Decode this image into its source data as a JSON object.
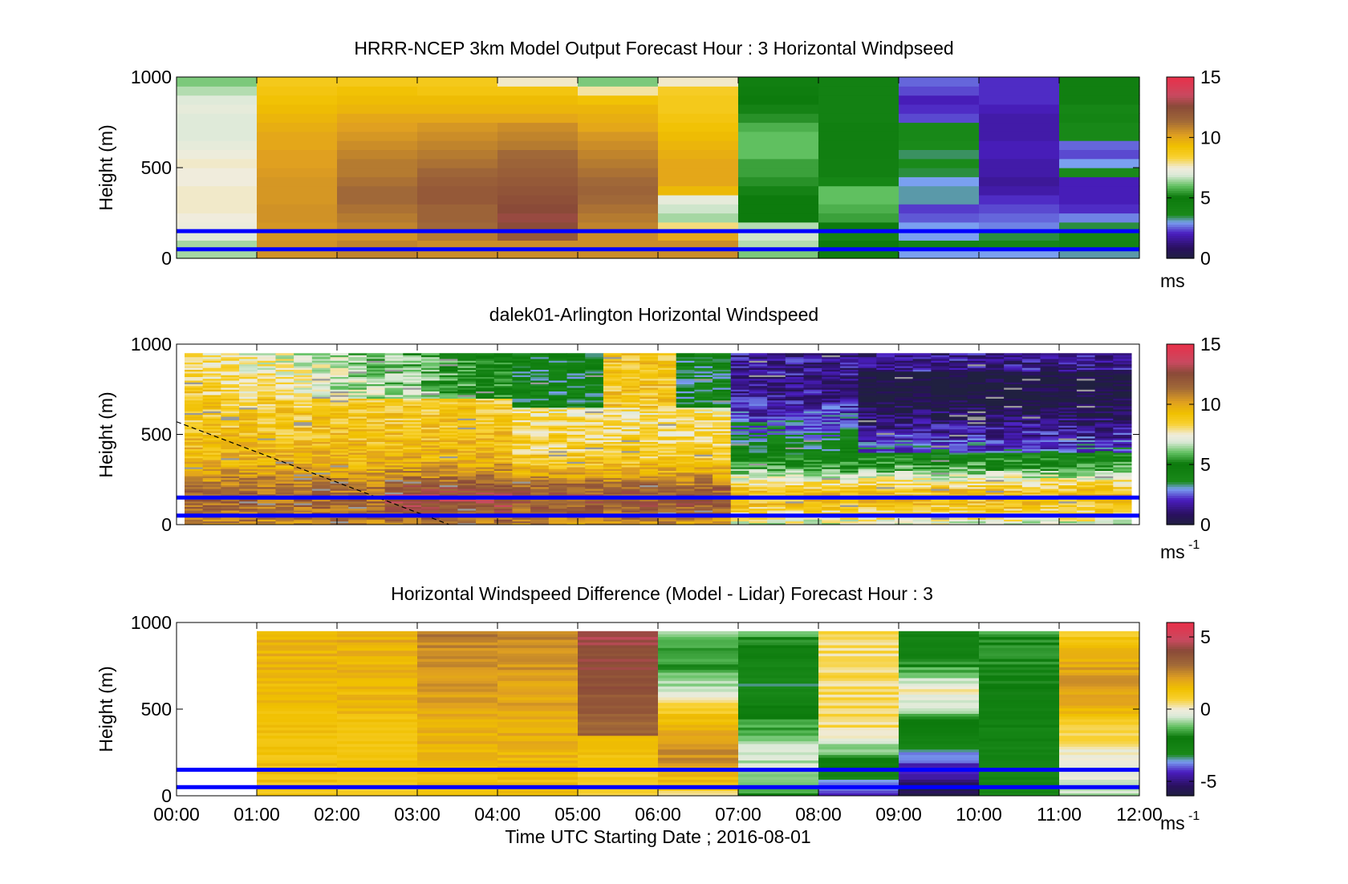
{
  "page": {
    "background": "#ffffff"
  },
  "chart_data": [
    {
      "type": "heatmap",
      "id": "model",
      "title": "HRRR-NCEP 3km Model Output   Forecast Hour : 3 Horizontal Windpseed",
      "ylabel": "Height (m)",
      "ylim": [
        0,
        1000
      ],
      "yticks": [
        "0",
        "500",
        "1000"
      ],
      "colorbar": {
        "ticks": [
          "0",
          "5",
          "10",
          "15"
        ],
        "range": [
          0,
          15
        ],
        "unit": "ms",
        "unit_sup": ""
      },
      "x_hours": [
        0,
        1,
        2,
        3,
        4,
        5,
        6,
        7,
        8,
        9,
        10,
        11,
        12
      ],
      "heights_m": [
        0,
        50,
        100,
        150,
        200,
        250,
        300,
        350,
        400,
        450,
        500,
        550,
        600,
        650,
        700,
        750,
        800,
        850,
        900,
        950,
        1000
      ],
      "values": [
        [
          6.5,
          10.5,
          10.8,
          10.6,
          10.6,
          10.6,
          10.6,
          6.2,
          4.8,
          3.0,
          3.0,
          3.2
        ],
        [
          6.5,
          10.5,
          10.8,
          10.6,
          10.6,
          10.6,
          10.6,
          6.6,
          5.0,
          4.2,
          4.0,
          4.2
        ],
        [
          7.0,
          10.4,
          10.5,
          11.0,
          12.0,
          10.6,
          10.0,
          6.8,
          5.2,
          3.0,
          3.5,
          4.0
        ],
        [
          7.4,
          10.4,
          10.8,
          11.4,
          12.5,
          10.8,
          8.0,
          6.6,
          5.0,
          3.0,
          2.8,
          3.5
        ],
        [
          7.5,
          10.5,
          11.0,
          11.6,
          12.8,
          11.0,
          6.5,
          5.0,
          5.6,
          2.5,
          2.6,
          2.8
        ],
        [
          7.6,
          10.5,
          11.2,
          11.6,
          12.6,
          11.2,
          6.8,
          5.0,
          5.8,
          2.3,
          2.4,
          2.2
        ],
        [
          7.6,
          10.4,
          11.4,
          12.0,
          12.4,
          11.4,
          7.2,
          5.0,
          6.0,
          3.2,
          2.2,
          2.0
        ],
        [
          7.6,
          10.4,
          11.4,
          12.0,
          12.2,
          11.6,
          9.5,
          5.2,
          6.0,
          3.2,
          1.8,
          2.0
        ],
        [
          7.5,
          10.4,
          11.2,
          11.8,
          12.0,
          11.4,
          10.0,
          5.4,
          4.0,
          3.0,
          1.6,
          2.0
        ],
        [
          7.5,
          10.3,
          11.0,
          11.5,
          11.8,
          11.2,
          10.0,
          5.6,
          4.5,
          3.5,
          1.8,
          3.6
        ],
        [
          7.6,
          10.2,
          11.0,
          11.2,
          11.6,
          11.0,
          10.0,
          5.6,
          4.5,
          3.6,
          1.8,
          3.0
        ],
        [
          7.4,
          10.2,
          10.8,
          11.0,
          11.4,
          10.8,
          9.8,
          6.0,
          4.6,
          3.4,
          2.0,
          2.4
        ],
        [
          7.2,
          10.0,
          10.6,
          10.8,
          11.0,
          10.6,
          9.6,
          6.0,
          4.6,
          3.6,
          2.0,
          2.6
        ],
        [
          7.0,
          10.0,
          10.4,
          10.6,
          10.8,
          10.4,
          9.4,
          6.0,
          4.6,
          3.8,
          1.8,
          3.8
        ],
        [
          7.0,
          9.8,
          10.2,
          10.4,
          10.6,
          10.0,
          9.2,
          5.8,
          4.6,
          3.8,
          1.8,
          3.8
        ],
        [
          7.0,
          9.6,
          10.0,
          10.0,
          10.0,
          9.8,
          9.0,
          5.4,
          4.4,
          2.4,
          1.8,
          4.2
        ],
        [
          7.2,
          9.4,
          9.6,
          9.6,
          9.6,
          9.6,
          8.8,
          5.2,
          4.4,
          2.2,
          2.0,
          4.0
        ],
        [
          7.0,
          9.2,
          9.4,
          9.4,
          9.4,
          9.2,
          8.8,
          5.0,
          4.4,
          2.0,
          2.2,
          4.6
        ],
        [
          6.6,
          9.0,
          9.2,
          9.0,
          9.0,
          7.8,
          8.6,
          4.8,
          4.4,
          2.4,
          2.2,
          4.6
        ],
        [
          6.2,
          8.8,
          8.8,
          8.8,
          7.6,
          6.2,
          7.6,
          4.6,
          4.4,
          2.6,
          2.2,
          4.6
        ]
      ],
      "lines_m": [
        150,
        50
      ]
    },
    {
      "type": "heatmap",
      "id": "lidar",
      "title": "dalek01-Arlington  Horizontal Windspeed",
      "ylabel": "Height (m)",
      "ylim": [
        0,
        1000
      ],
      "yticks": [
        "0",
        "500",
        "1000"
      ],
      "colorbar": {
        "ticks": [
          "0",
          "5",
          "10",
          "15"
        ],
        "range": [
          0,
          15
        ],
        "unit": "ms",
        "unit_sup": "-1"
      },
      "x_hours": [
        0,
        1,
        2,
        3,
        4,
        5,
        6,
        7,
        8,
        9,
        10,
        11,
        12
      ],
      "time_start_h": 0.1,
      "time_end_h": 11.9,
      "height_top_m": 950,
      "lines_m": [
        150,
        50
      ],
      "dashed_line": {
        "from": [
          0,
          570
        ],
        "to": [
          3.4,
          0
        ]
      }
    },
    {
      "type": "heatmap",
      "id": "diff",
      "title": "Horizontal Windspeed Difference (Model - Lidar) Forecast Hour : 3",
      "ylabel": "Height (m)",
      "xlabel": "Time UTC  Starting Date ; 2016-08-01",
      "ylim": [
        0,
        1000
      ],
      "yticks": [
        "0",
        "500",
        "1000"
      ],
      "xticks": [
        "00:00",
        "01:00",
        "02:00",
        "03:00",
        "04:00",
        "05:00",
        "06:00",
        "07:00",
        "08:00",
        "09:00",
        "10:00",
        "11:00",
        "12:00"
      ],
      "colorbar": {
        "ticks": [
          "-5",
          "0",
          "5"
        ],
        "range": [
          -6,
          6
        ],
        "unit": "ms",
        "unit_sup": "-1"
      },
      "x_hours": [
        0,
        1,
        2,
        3,
        4,
        5,
        6,
        7,
        8,
        9,
        10,
        11,
        12
      ],
      "height_top_m": 950,
      "lines_m": [
        150,
        50
      ]
    }
  ],
  "colormap": {
    "name": "windspeed",
    "stops": [
      [
        0.0,
        "#202040"
      ],
      [
        0.06,
        "#2a1060"
      ],
      [
        0.14,
        "#4a1ec0"
      ],
      [
        0.2,
        "#7aa0f0"
      ],
      [
        0.24,
        "#1a8a1a"
      ],
      [
        0.34,
        "#0c7a0c"
      ],
      [
        0.4,
        "#60c060"
      ],
      [
        0.46,
        "#dcead8"
      ],
      [
        0.5,
        "#f0ecdc"
      ],
      [
        0.56,
        "#f8d030"
      ],
      [
        0.62,
        "#f0c000"
      ],
      [
        0.68,
        "#e0a020"
      ],
      [
        0.76,
        "#a06838"
      ],
      [
        0.84,
        "#8a4a38"
      ],
      [
        0.9,
        "#c84a60"
      ],
      [
        1.0,
        "#e8304a"
      ]
    ]
  },
  "line_color": "#0000ff",
  "bad_color": "#999999"
}
